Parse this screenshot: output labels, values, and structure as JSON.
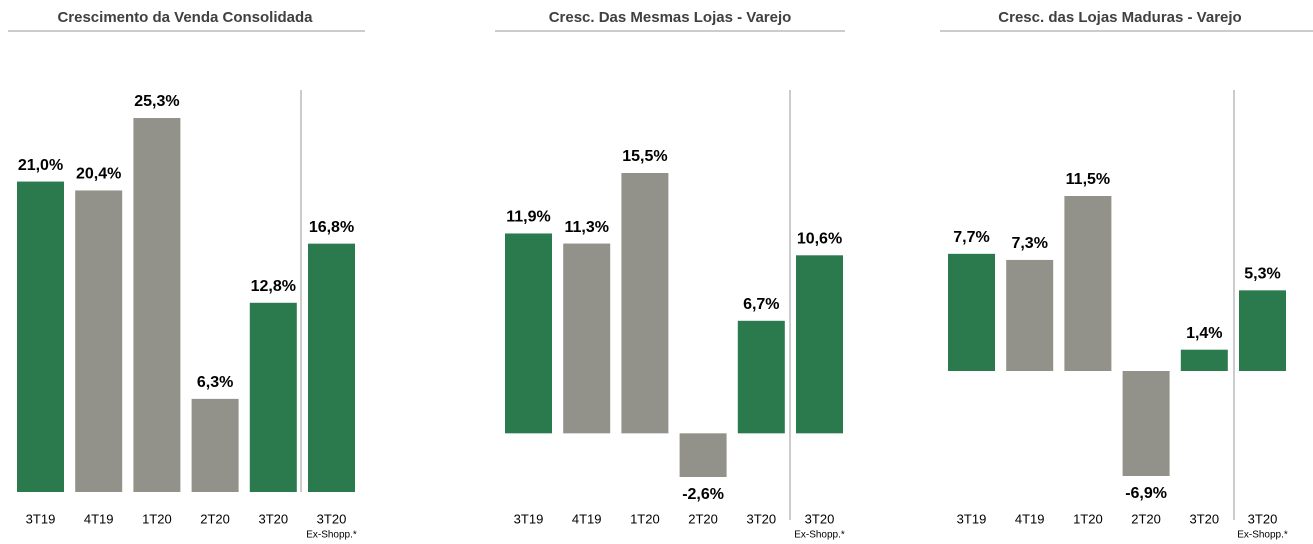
{
  "chart_data": [
    {
      "type": "bar",
      "title": "Crescimento da Venda Consolidada",
      "categories": [
        "3T19",
        "4T19",
        "1T20",
        "2T20",
        "3T20",
        "3T20"
      ],
      "note": "Ex-Shopp.*",
      "values": [
        21.0,
        20.4,
        25.3,
        6.3,
        12.8,
        16.8
      ],
      "value_labels": [
        "21,0%",
        "20,4%",
        "25,3%",
        "6,3%",
        "12,8%",
        "16,8%"
      ],
      "colors": [
        "#2a7a4e",
        "#92928a",
        "#92928a",
        "#92928a",
        "#2a7a4e",
        "#2a7a4e"
      ]
    },
    {
      "type": "bar",
      "title": "Cresc. Das Mesmas Lojas - Varejo",
      "categories": [
        "3T19",
        "4T19",
        "1T20",
        "2T20",
        "3T20",
        "3T20"
      ],
      "note": "Ex-Shopp.*",
      "values": [
        11.9,
        11.3,
        15.5,
        -2.6,
        6.7,
        10.6
      ],
      "value_labels": [
        "11,9%",
        "11,3%",
        "15,5%",
        "-2,6%",
        "6,7%",
        "10,6%"
      ],
      "colors": [
        "#2a7a4e",
        "#92928a",
        "#92928a",
        "#92928a",
        "#2a7a4e",
        "#2a7a4e"
      ]
    },
    {
      "type": "bar",
      "title": "Cresc. das Lojas Maduras - Varejo",
      "categories": [
        "3T19",
        "4T19",
        "1T20",
        "2T20",
        "3T20",
        "3T20"
      ],
      "note": "Ex-Shopp.*",
      "values": [
        7.7,
        7.3,
        11.5,
        -6.9,
        1.4,
        5.3
      ],
      "value_labels": [
        "7,7%",
        "7,3%",
        "11,5%",
        "-6,9%",
        "1,4%",
        "5,3%"
      ],
      "colors": [
        "#2a7a4e",
        "#92928a",
        "#92928a",
        "#92928a",
        "#2a7a4e",
        "#2a7a4e"
      ]
    }
  ]
}
